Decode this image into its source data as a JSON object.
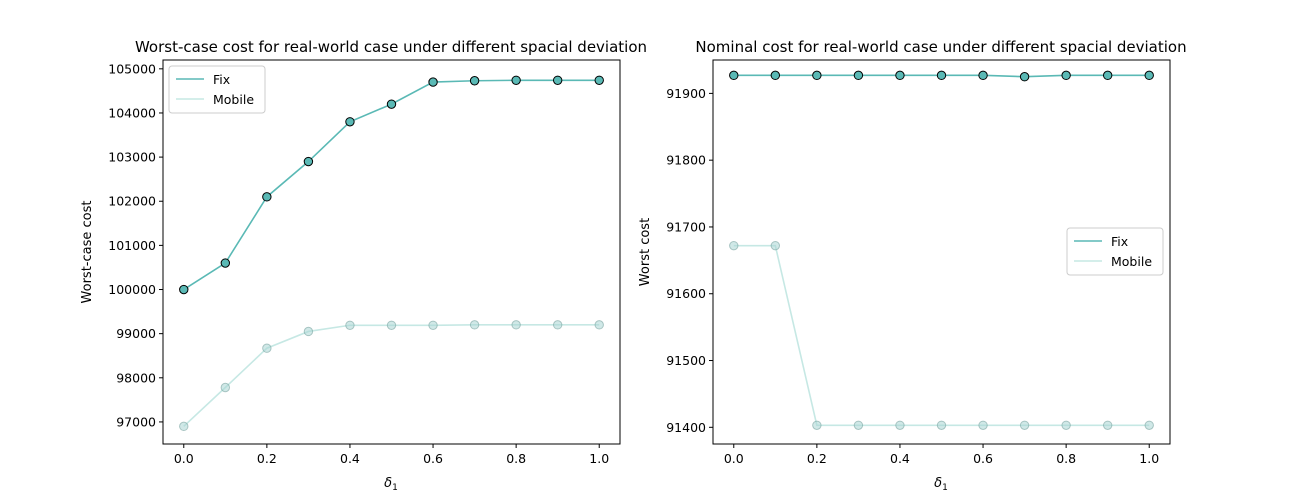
{
  "colors": {
    "fix": "#5ab9b5",
    "mobile": "#c6e8e4",
    "background": "#ffffff",
    "axes": "#000000"
  },
  "chart_data": [
    {
      "type": "line",
      "title": "Worst-case cost for real-world case under different spacial deviation",
      "xlabel": "δ1",
      "ylabel": "Worst-case cost",
      "xlim": [
        -0.05,
        1.05
      ],
      "ylim": [
        96500,
        105200
      ],
      "xticks": [
        0.0,
        0.2,
        0.4,
        0.6,
        0.8,
        1.0
      ],
      "xtick_labels": [
        "0.0",
        "0.2",
        "0.4",
        "0.6",
        "0.8",
        "1.0"
      ],
      "yticks": [
        97000,
        98000,
        99000,
        100000,
        101000,
        102000,
        103000,
        104000,
        105000
      ],
      "ytick_labels": [
        "97000",
        "98000",
        "99000",
        "100000",
        "101000",
        "102000",
        "103000",
        "104000",
        "105000"
      ],
      "grid": false,
      "legend_position": "upper-left",
      "x": [
        0.0,
        0.1,
        0.2,
        0.3,
        0.4,
        0.5,
        0.6,
        0.7,
        0.8,
        0.9,
        1.0
      ],
      "series": [
        {
          "name": "Fix",
          "color_key": "fix",
          "values": [
            100000,
            100600,
            102100,
            102900,
            103800,
            104200,
            104700,
            104730,
            104740,
            104740,
            104740
          ]
        },
        {
          "name": "Mobile",
          "color_key": "mobile",
          "values": [
            96900,
            97780,
            98670,
            99050,
            99190,
            99190,
            99190,
            99200,
            99200,
            99200,
            99200
          ]
        }
      ]
    },
    {
      "type": "line",
      "title": "Nominal cost for real-world case under different spacial deviation",
      "xlabel": "δ1",
      "ylabel": "Worst cost",
      "xlim": [
        -0.05,
        1.05
      ],
      "ylim": [
        91375,
        91950
      ],
      "xticks": [
        0.0,
        0.2,
        0.4,
        0.6,
        0.8,
        1.0
      ],
      "xtick_labels": [
        "0.0",
        "0.2",
        "0.4",
        "0.6",
        "0.8",
        "1.0"
      ],
      "yticks": [
        91400,
        91500,
        91600,
        91700,
        91800,
        91900
      ],
      "ytick_labels": [
        "91400",
        "91500",
        "91600",
        "91700",
        "91800",
        "91900"
      ],
      "grid": false,
      "legend_position": "center-right",
      "x": [
        0.0,
        0.1,
        0.2,
        0.3,
        0.4,
        0.5,
        0.6,
        0.7,
        0.8,
        0.9,
        1.0
      ],
      "series": [
        {
          "name": "Fix",
          "color_key": "fix",
          "values": [
            91927,
            91927,
            91927,
            91927,
            91927,
            91927,
            91927,
            91925,
            91927,
            91927,
            91927
          ]
        },
        {
          "name": "Mobile",
          "color_key": "mobile",
          "values": [
            91672,
            91672,
            91403,
            91403,
            91403,
            91403,
            91403,
            91403,
            91403,
            91403,
            91403
          ]
        }
      ]
    }
  ]
}
